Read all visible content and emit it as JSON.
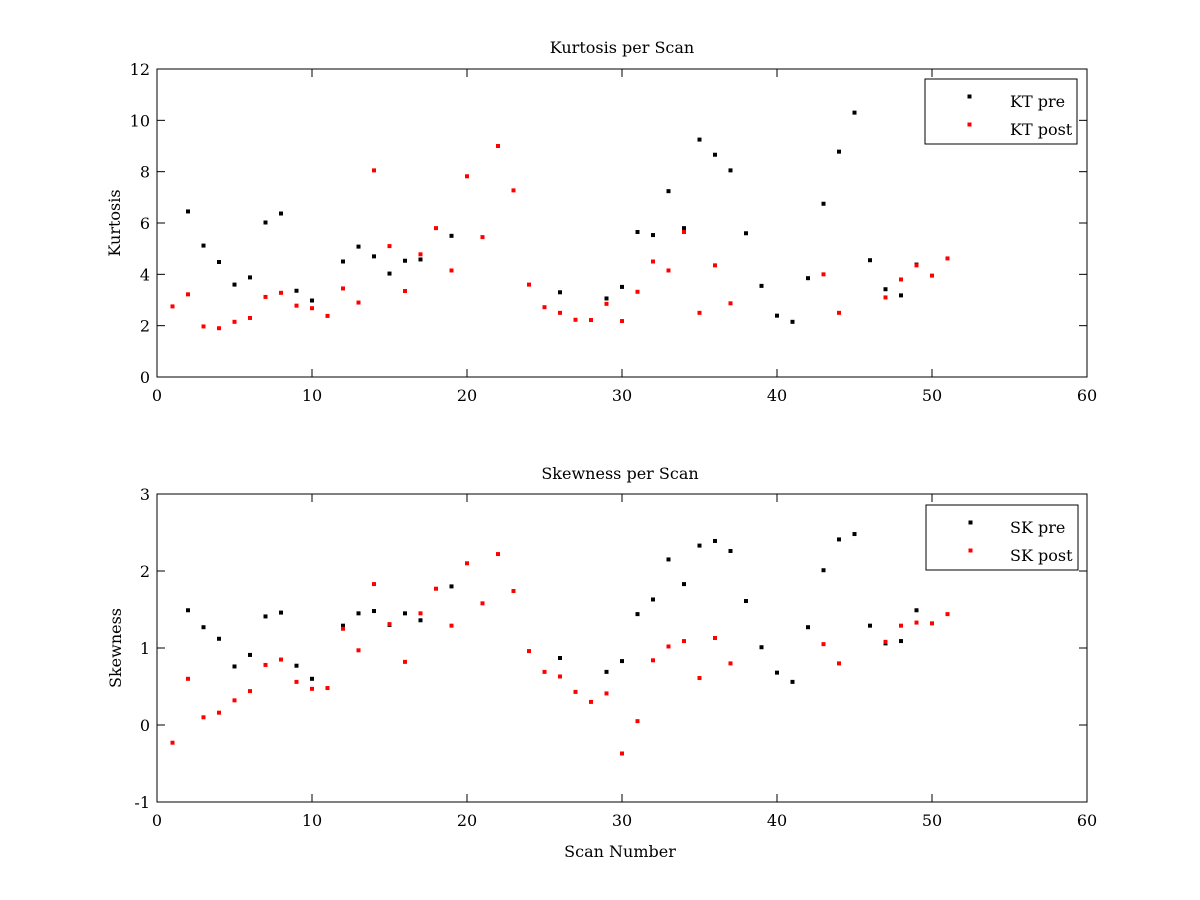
{
  "chart_data": [
    {
      "type": "scatter",
      "title": "Kurtosis per Scan",
      "xlabel": "",
      "ylabel": "Kurtosis",
      "xlim": [
        0,
        60
      ],
      "ylim": [
        0,
        12
      ],
      "xticks": [
        0,
        10,
        20,
        30,
        40,
        50,
        60
      ],
      "yticks": [
        0,
        2,
        4,
        6,
        8,
        10,
        12
      ],
      "grid": false,
      "legend_position": "top-right",
      "series": [
        {
          "name": "KT pre",
          "color": "#000000",
          "points": [
            [
              2,
              6.45
            ],
            [
              3,
              5.12
            ],
            [
              4,
              4.48
            ],
            [
              5,
              3.6
            ],
            [
              6,
              3.88
            ],
            [
              7,
              6.02
            ],
            [
              8,
              6.37
            ],
            [
              9,
              3.36
            ],
            [
              10,
              2.98
            ],
            [
              12,
              4.5
            ],
            [
              13,
              5.08
            ],
            [
              14,
              4.7
            ],
            [
              15,
              4.03
            ],
            [
              16,
              4.53
            ],
            [
              17,
              4.58
            ],
            [
              19,
              5.5
            ],
            [
              26,
              3.3
            ],
            [
              29,
              3.06
            ],
            [
              30,
              3.51
            ],
            [
              31,
              5.65
            ],
            [
              32,
              5.53
            ],
            [
              33,
              7.24
            ],
            [
              34,
              5.8
            ],
            [
              35,
              9.25
            ],
            [
              36,
              8.66
            ],
            [
              37,
              8.05
            ],
            [
              38,
              5.6
            ],
            [
              39,
              3.55
            ],
            [
              40,
              2.39
            ],
            [
              41,
              2.15
            ],
            [
              42,
              3.85
            ],
            [
              43,
              6.75
            ],
            [
              44,
              8.78
            ],
            [
              45,
              10.3
            ],
            [
              46,
              4.55
            ],
            [
              47,
              3.42
            ],
            [
              48,
              3.18
            ],
            [
              49,
              4.38
            ]
          ]
        },
        {
          "name": "KT post",
          "color": "#ff0000",
          "points": [
            [
              1,
              2.75
            ],
            [
              2,
              3.22
            ],
            [
              3,
              1.97
            ],
            [
              4,
              1.9
            ],
            [
              5,
              2.15
            ],
            [
              6,
              2.3
            ],
            [
              7,
              3.12
            ],
            [
              8,
              3.28
            ],
            [
              9,
              2.78
            ],
            [
              10,
              2.68
            ],
            [
              11,
              2.38
            ],
            [
              12,
              3.45
            ],
            [
              13,
              2.9
            ],
            [
              14,
              8.05
            ],
            [
              15,
              5.1
            ],
            [
              16,
              3.35
            ],
            [
              17,
              4.78
            ],
            [
              18,
              5.8
            ],
            [
              19,
              4.15
            ],
            [
              20,
              7.82
            ],
            [
              21,
              5.45
            ],
            [
              22,
              9.0
            ],
            [
              23,
              7.27
            ],
            [
              24,
              3.6
            ],
            [
              25,
              2.72
            ],
            [
              26,
              2.5
            ],
            [
              27,
              2.23
            ],
            [
              28,
              2.22
            ],
            [
              29,
              2.85
            ],
            [
              30,
              2.18
            ],
            [
              31,
              3.32
            ],
            [
              32,
              4.5
            ],
            [
              33,
              4.15
            ],
            [
              34,
              5.65
            ],
            [
              35,
              2.5
            ],
            [
              36,
              4.35
            ],
            [
              37,
              2.87
            ],
            [
              43,
              4.0
            ],
            [
              44,
              2.5
            ],
            [
              47,
              3.1
            ],
            [
              48,
              3.8
            ],
            [
              49,
              4.35
            ],
            [
              50,
              3.95
            ],
            [
              51,
              4.62
            ]
          ]
        }
      ]
    },
    {
      "type": "scatter",
      "title": "Skewness per Scan",
      "xlabel": "Scan Number",
      "ylabel": "Skewness",
      "xlim": [
        0,
        60
      ],
      "ylim": [
        -1,
        3
      ],
      "xticks": [
        0,
        10,
        20,
        30,
        40,
        50,
        60
      ],
      "yticks": [
        -1,
        0,
        1,
        2,
        3
      ],
      "grid": false,
      "legend_position": "top-right",
      "series": [
        {
          "name": "SK pre",
          "color": "#000000",
          "points": [
            [
              2,
              1.49
            ],
            [
              3,
              1.27
            ],
            [
              4,
              1.12
            ],
            [
              5,
              0.76
            ],
            [
              6,
              0.91
            ],
            [
              7,
              1.41
            ],
            [
              8,
              1.46
            ],
            [
              9,
              0.77
            ],
            [
              10,
              0.6
            ],
            [
              12,
              1.29
            ],
            [
              13,
              1.45
            ],
            [
              14,
              1.48
            ],
            [
              15,
              1.3
            ],
            [
              16,
              1.45
            ],
            [
              17,
              1.36
            ],
            [
              19,
              1.8
            ],
            [
              26,
              0.87
            ],
            [
              29,
              0.69
            ],
            [
              30,
              0.83
            ],
            [
              31,
              1.44
            ],
            [
              32,
              1.63
            ],
            [
              33,
              2.15
            ],
            [
              34,
              1.83
            ],
            [
              35,
              2.33
            ],
            [
              36,
              2.39
            ],
            [
              37,
              2.26
            ],
            [
              38,
              1.61
            ],
            [
              39,
              1.01
            ],
            [
              40,
              0.68
            ],
            [
              41,
              0.56
            ],
            [
              42,
              1.27
            ],
            [
              43,
              2.01
            ],
            [
              44,
              2.41
            ],
            [
              45,
              2.48
            ],
            [
              46,
              1.29
            ],
            [
              47,
              1.06
            ],
            [
              48,
              1.09
            ],
            [
              49,
              1.49
            ]
          ]
        },
        {
          "name": "SK post",
          "color": "#ff0000",
          "points": [
            [
              1,
              -0.23
            ],
            [
              2,
              0.6
            ],
            [
              3,
              0.1
            ],
            [
              4,
              0.16
            ],
            [
              5,
              0.32
            ],
            [
              6,
              0.44
            ],
            [
              7,
              0.78
            ],
            [
              8,
              0.85
            ],
            [
              9,
              0.56
            ],
            [
              10,
              0.47
            ],
            [
              11,
              0.48
            ],
            [
              12,
              1.25
            ],
            [
              13,
              0.97
            ],
            [
              14,
              1.83
            ],
            [
              15,
              1.31
            ],
            [
              16,
              0.82
            ],
            [
              17,
              1.45
            ],
            [
              18,
              1.77
            ],
            [
              19,
              1.29
            ],
            [
              20,
              2.1
            ],
            [
              21,
              1.58
            ],
            [
              22,
              2.22
            ],
            [
              23,
              1.74
            ],
            [
              24,
              0.96
            ],
            [
              25,
              0.69
            ],
            [
              26,
              0.63
            ],
            [
              27,
              0.43
            ],
            [
              28,
              0.3
            ],
            [
              29,
              0.41
            ],
            [
              30,
              -0.37
            ],
            [
              31,
              0.05
            ],
            [
              32,
              0.84
            ],
            [
              33,
              1.02
            ],
            [
              34,
              1.09
            ],
            [
              35,
              0.61
            ],
            [
              36,
              1.13
            ],
            [
              37,
              0.8
            ],
            [
              43,
              1.05
            ],
            [
              44,
              0.8
            ],
            [
              47,
              1.08
            ],
            [
              48,
              1.29
            ],
            [
              49,
              1.33
            ],
            [
              50,
              1.32
            ],
            [
              51,
              1.44
            ]
          ]
        }
      ]
    }
  ]
}
